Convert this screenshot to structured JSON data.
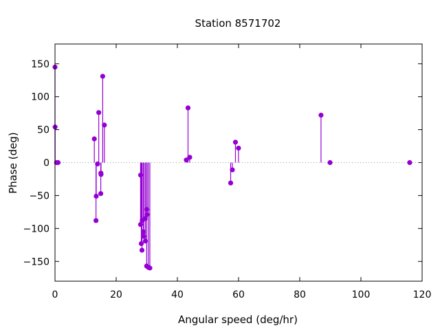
{
  "chart_data": {
    "type": "scatter",
    "style": "impulses with point markers",
    "title": "Station 8571702",
    "xlabel": "Angular speed (deg/hr)",
    "ylabel": "Phase (deg)",
    "xlim": [
      0,
      120
    ],
    "ylim": [
      -180,
      180
    ],
    "xticks": [
      0,
      20,
      40,
      60,
      80,
      100,
      120
    ],
    "yticks": [
      -150,
      -100,
      -50,
      0,
      50,
      100,
      150
    ],
    "zero_line": true,
    "grid": false,
    "color": "#9400d3",
    "series": [
      {
        "x": [
          0.0,
          0.04,
          0.5,
          1.0,
          12.85,
          13.4,
          13.47,
          13.9,
          14.3,
          14.96,
          15.0,
          15.04,
          15.59,
          16.14,
          27.97,
          28.0,
          28.2,
          28.43,
          28.51,
          28.9,
          29.0,
          29.46,
          29.53,
          29.96,
          30.0,
          30.08,
          30.5,
          31.0,
          42.93,
          43.48,
          44.03,
          57.42,
          57.97,
          58.98,
          59.98,
          86.95,
          89.9,
          115.94
        ],
        "y": [
          145,
          54,
          0,
          0,
          36,
          -88,
          -51,
          -2,
          76,
          -47,
          -16,
          -18,
          131,
          57,
          -94,
          -19,
          -123,
          -133,
          -88,
          -105,
          -112,
          -85,
          -119,
          -157,
          -71,
          -79,
          -159,
          -160,
          4,
          83,
          8,
          -31,
          -11,
          31,
          22,
          72,
          0,
          0
        ]
      }
    ]
  }
}
